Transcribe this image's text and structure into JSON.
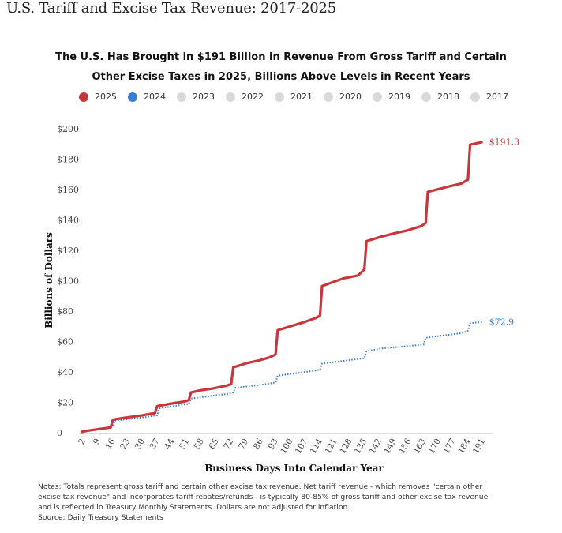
{
  "page_title": "U.S. Tariff and Excise Tax Revenue: 2017-2025",
  "chart_data": {
    "type": "line",
    "title_line1": "The U.S. Has Brought in $191 Billion in Revenue From Gross Tariff and Certain",
    "title_line2": "Other Excise Taxes in 2025, Billions Above Levels in Recent Years",
    "xlabel": "Business Days Into Calendar Year",
    "ylabel": "Billions of Dollars",
    "ylim": [
      0,
      200
    ],
    "xlim": [
      0,
      196
    ],
    "y_ticks": [
      0,
      20,
      40,
      60,
      80,
      100,
      120,
      140,
      160,
      180,
      200
    ],
    "y_tick_labels": [
      "0",
      "$20",
      "$40",
      "$60",
      "$80",
      "$100",
      "$120",
      "$140",
      "$160",
      "$180",
      "$200"
    ],
    "x_ticks": [
      "2",
      "9",
      "16",
      "23",
      "30",
      "37",
      "44",
      "51",
      "58",
      "65",
      "72",
      "79",
      "86",
      "93",
      "100",
      "107",
      "114",
      "121",
      "128",
      "135",
      "142",
      "149",
      "156",
      "163",
      "170",
      "177",
      "184",
      "191"
    ],
    "legend": [
      {
        "label": "2025",
        "color": "#c8363a"
      },
      {
        "label": "2024",
        "color": "#3b7bd0"
      },
      {
        "label": "2023",
        "color": "#d9d9d9"
      },
      {
        "label": "2022",
        "color": "#d9d9d9"
      },
      {
        "label": "2021",
        "color": "#d9d9d9"
      },
      {
        "label": "2020",
        "color": "#d9d9d9"
      },
      {
        "label": "2019",
        "color": "#d9d9d9"
      },
      {
        "label": "2018",
        "color": "#d9d9d9"
      },
      {
        "label": "2017",
        "color": "#d9d9d9"
      }
    ],
    "series": [
      {
        "name": "2025",
        "color": "#c8363a",
        "style": "solid",
        "end_label": "$191.3",
        "x": [
          1,
          5,
          10,
          15,
          16,
          20,
          25,
          30,
          36,
          37,
          45,
          50,
          52,
          53,
          58,
          63,
          70,
          72,
          73,
          80,
          85,
          90,
          93,
          94,
          100,
          106,
          112,
          114,
          115,
          120,
          125,
          132,
          135,
          136,
          143,
          150,
          155,
          162,
          164,
          165,
          175,
          181,
          184,
          185,
          191
        ],
        "y": [
          0.5,
          1.5,
          2.5,
          3.5,
          8.5,
          9.5,
          10.5,
          11.5,
          13,
          17.5,
          19.5,
          20.5,
          21.5,
          26.5,
          28,
          29,
          31,
          32,
          43,
          46,
          47.5,
          49.5,
          51.5,
          67.5,
          70,
          72.5,
          75.5,
          77,
          96.5,
          99,
          101.5,
          103.5,
          107.5,
          126,
          129,
          131.5,
          133,
          136,
          138,
          158.5,
          162,
          164,
          166.5,
          189.5,
          191.3
        ]
      },
      {
        "name": "2024",
        "color": "#3b7bd0",
        "style": "dotted",
        "end_label": "$72.9",
        "x": [
          1,
          10,
          16,
          17,
          30,
          37,
          38,
          52,
          53,
          70,
          73,
          74,
          86,
          93,
          94,
          110,
          114,
          115,
          135,
          136,
          143,
          152,
          163,
          164,
          181,
          184,
          185,
          188,
          191
        ],
        "y": [
          0.5,
          2.5,
          4,
          8,
          10,
          11.5,
          16,
          19,
          22.5,
          25.5,
          26.5,
          29.5,
          31.5,
          33,
          37.5,
          40.5,
          41.5,
          45.5,
          49,
          53.5,
          55.5,
          56.5,
          58,
          62.5,
          65.5,
          67,
          72,
          72.5,
          72.9
        ]
      }
    ]
  },
  "notes": {
    "line1": "Notes: Totals represent gross tariff and certain other excise tax revenue. Net tariff revenue - which removes \"certain other",
    "line2": "excise tax revenue\" and incorporates tariff rebates/refunds - is typically 80-85% of gross tariff and other excise tax revenue",
    "line3": "and is reflected in Treasury Monthly Statements. Dollars are not adjusted for inflation.",
    "source": "Source: Daily Treasury Statements"
  }
}
